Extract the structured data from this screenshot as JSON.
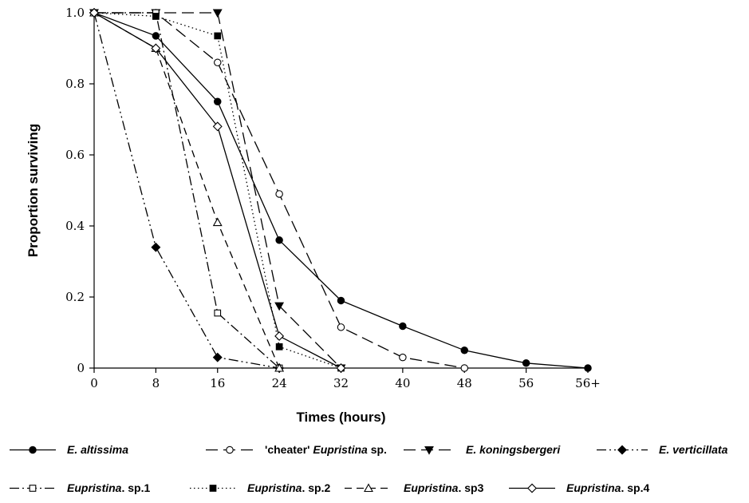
{
  "chart_data": {
    "type": "line",
    "xlabel": "Times (hours)",
    "ylabel": "Proportion surviving",
    "x": [
      "0",
      "8",
      "16",
      "24",
      "32",
      "40",
      "48",
      "56",
      "56+"
    ],
    "ylim": [
      0,
      1.0
    ],
    "yticks": [
      "0",
      "0.2",
      "0.4",
      "0.6",
      "0.8",
      "1.0"
    ],
    "grid": false,
    "legend_position": "bottom",
    "series": [
      {
        "legend": [
          {
            "text": "E. altissima",
            "italic": true
          }
        ],
        "marker": "filled-circle",
        "dash": "solid",
        "values": [
          1.0,
          0.935,
          0.75,
          0.36,
          0.19,
          0.118,
          0.05,
          0.014,
          0.0
        ]
      },
      {
        "legend": [
          {
            "text": "'cheater' ",
            "italic": false
          },
          {
            "text": "Eupristina",
            "italic": true
          },
          {
            "text": " sp.",
            "italic": false
          }
        ],
        "marker": "open-circle",
        "dash": "long-dash",
        "values": [
          1.0,
          1.0,
          0.86,
          0.49,
          0.115,
          0.03,
          0.0,
          null,
          null
        ]
      },
      {
        "legend": [
          {
            "text": "E. koningsbergeri",
            "italic": true
          }
        ],
        "marker": "filled-triangle-down",
        "dash": "long-dash",
        "values": [
          1.0,
          1.0,
          1.0,
          0.175,
          0.0,
          null,
          null,
          null,
          null
        ]
      },
      {
        "legend": [
          {
            "text": "E. verticillata",
            "italic": true
          }
        ],
        "marker": "filled-diamond",
        "dash": "dash-dot-dot",
        "values": [
          1.0,
          0.34,
          0.03,
          0.0,
          null,
          null,
          null,
          null,
          null
        ]
      },
      {
        "legend": [
          {
            "text": "Eupristina",
            "italic": true
          },
          {
            "text": ". sp.1",
            "italic": false
          }
        ],
        "marker": "open-square",
        "dash": "dash-dot",
        "values": [
          1.0,
          1.0,
          0.155,
          0.0,
          null,
          null,
          null,
          null,
          null
        ]
      },
      {
        "legend": [
          {
            "text": "Eupristina",
            "italic": true
          },
          {
            "text": ". sp.2",
            "italic": false
          }
        ],
        "marker": "filled-square",
        "dash": "dotted",
        "values": [
          1.0,
          0.99,
          0.935,
          0.06,
          0.0,
          null,
          null,
          null,
          null
        ]
      },
      {
        "legend": [
          {
            "text": "Eupristina",
            "italic": true
          },
          {
            "text": ". sp3",
            "italic": false
          }
        ],
        "marker": "open-triangle-up",
        "dash": "medium-dash",
        "values": [
          1.0,
          0.9,
          0.41,
          0.0,
          null,
          null,
          null,
          null,
          null
        ]
      },
      {
        "legend": [
          {
            "text": "Eupristina",
            "italic": true
          },
          {
            "text": ". sp.4",
            "italic": false
          }
        ],
        "marker": "open-diamond",
        "dash": "solid",
        "values": [
          1.0,
          0.9,
          0.68,
          0.09,
          0.0,
          null,
          null,
          null,
          null
        ]
      }
    ]
  }
}
